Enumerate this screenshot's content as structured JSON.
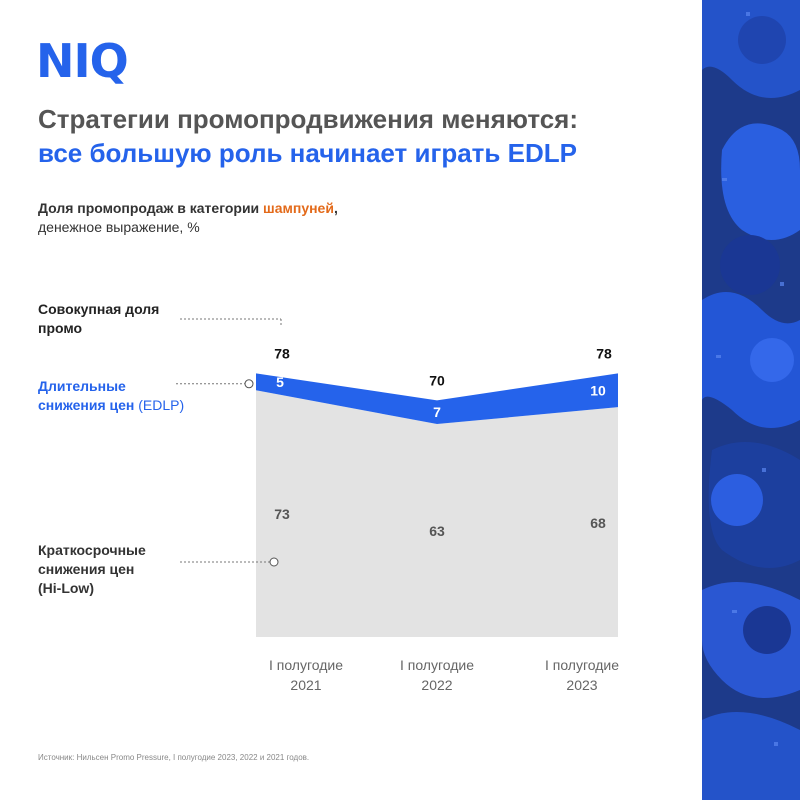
{
  "header": {
    "logo": "NIQ",
    "title_line1": "Стратегии промопродвижения меняются:",
    "title_line2": "все большую роль начинает играть EDLP"
  },
  "subtitle": {
    "part1": "Доля промопродаж в категории ",
    "accent": "шампуней",
    "part2": ",",
    "line2": "денежное выражение, %"
  },
  "labels": {
    "total_line1": "Совокупная доля",
    "total_line2": "промо",
    "edlp_line1": "Длительные",
    "edlp_line2_bold": "снижения цен",
    "edlp_line2_rest": " (EDLP)",
    "hilow_line1": "Краткосрочные",
    "hilow_line2": "снижения цен",
    "hilow_line3": "(Hi-Low)"
  },
  "source": "Источник: Нильсен Promo Pressure, I полугодие 2023, 2022 и 2021 годов.",
  "colors": {
    "brand_blue": "#2563eb",
    "accent_orange": "#e36a1a",
    "hilow_fill": "#e3e3e3",
    "edlp_fill": "#2563eb"
  },
  "chart_data": {
    "type": "area",
    "stacked": true,
    "categories": [
      [
        "I полугодие",
        "2021"
      ],
      [
        "I полугодие",
        "2022"
      ],
      [
        "I полугодие",
        "2023"
      ]
    ],
    "series": [
      {
        "name": "Краткосрочные снижения цен (Hi-Low)",
        "values": [
          73,
          63,
          68
        ]
      },
      {
        "name": "Длительные снижения цен (EDLP)",
        "values": [
          5,
          7,
          10
        ]
      }
    ],
    "totals": [
      78,
      70,
      78
    ],
    "ylim": [
      0,
      80
    ]
  }
}
